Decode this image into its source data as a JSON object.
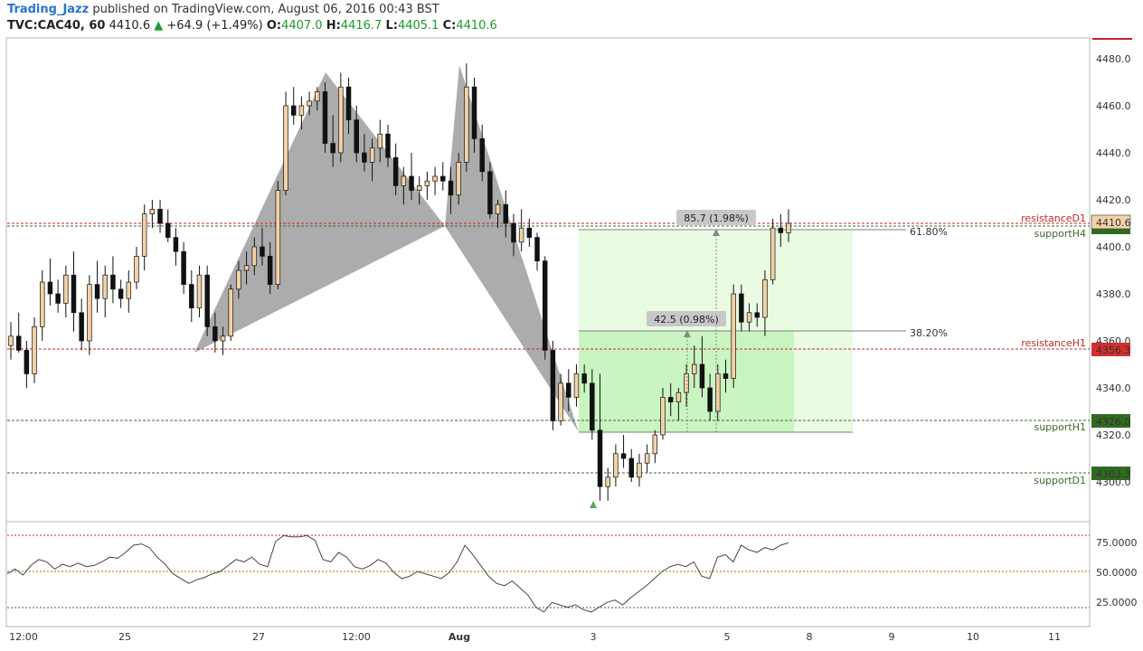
{
  "header": {
    "author": "Trading_Jazz",
    "published": "published on TradingView.com, August 06, 2016 00:43 BST",
    "symbol": "TVC:CAC40, 60",
    "last": "4410.6",
    "change_arrow": "▲",
    "change": "+64.9 (+1.49%)",
    "o_label": "O:",
    "o_value": "4407.0",
    "h_label": "H:",
    "h_value": "4416.7",
    "l_label": "L:",
    "l_value": "4405.1",
    "c_label": "C:",
    "c_value": "4410.6"
  },
  "colors": {
    "up_candle": "#f2d2a6",
    "down_candle": "#111111",
    "pattern_fill": "#9e9e9e",
    "projection_fill": "#e9fbe3",
    "projection_fill_inner": "#c6f3bd",
    "resistance_color": "#c62828",
    "support_color": "#3e6b2a",
    "rsi_line": "#444444"
  },
  "price_axis": {
    "ticks": [
      "4480.0",
      "4460.0",
      "4440.0",
      "4420.0",
      "4400.0",
      "4380.0",
      "4360.0",
      "4340.0",
      "4320.0",
      "4300.0"
    ],
    "last_price_tag": "4410.6"
  },
  "levels": [
    {
      "name": "resistanceD1",
      "tag": "",
      "type": "resistance"
    },
    {
      "name": "supportH4",
      "tag": "",
      "type": "support"
    },
    {
      "name": "resistanceH1",
      "tag": "4356.3",
      "type": "resistance"
    },
    {
      "name": "supportH1",
      "tag": "4326.0",
      "type": "support"
    },
    {
      "name": "supportD1",
      "tag": "4303.3",
      "type": "support"
    }
  ],
  "measure_labels": {
    "big": "85.7 (1.98%)",
    "small": "42.5 (0.98%)"
  },
  "fib_labels": {
    "upper": "61.80%",
    "lower": "38.20%"
  },
  "rsi_axis": {
    "ticks": [
      "75.0000",
      "50.0000",
      "25.0000"
    ]
  },
  "time_axis": {
    "labels": [
      "12:00",
      "25",
      "27",
      "12:00",
      "Aug",
      "3",
      "5",
      "8",
      "9",
      "10",
      "11"
    ]
  },
  "chart_data": {
    "type": "candlestick",
    "ohlc": [
      [
        4358,
        4368,
        4352,
        4362
      ],
      [
        4362,
        4372,
        4355,
        4356
      ],
      [
        4356,
        4360,
        4340,
        4346
      ],
      [
        4346,
        4370,
        4342,
        4366
      ],
      [
        4366,
        4390,
        4360,
        4385
      ],
      [
        4385,
        4395,
        4375,
        4380
      ],
      [
        4380,
        4386,
        4372,
        4376
      ],
      [
        4376,
        4392,
        4370,
        4388
      ],
      [
        4388,
        4398,
        4364,
        4372
      ],
      [
        4372,
        4378,
        4356,
        4360
      ],
      [
        4360,
        4388,
        4354,
        4384
      ],
      [
        4384,
        4394,
        4372,
        4378
      ],
      [
        4378,
        4392,
        4370,
        4388
      ],
      [
        4388,
        4396,
        4376,
        4382
      ],
      [
        4382,
        4386,
        4374,
        4378
      ],
      [
        4378,
        4390,
        4372,
        4385
      ],
      [
        4385,
        4400,
        4382,
        4396
      ],
      [
        4396,
        4418,
        4390,
        4414
      ],
      [
        4414,
        4420,
        4408,
        4416
      ],
      [
        4416,
        4420,
        4406,
        4410
      ],
      [
        4410,
        4416,
        4402,
        4404
      ],
      [
        4404,
        4408,
        4392,
        4398
      ],
      [
        4398,
        4402,
        4380,
        4384
      ],
      [
        4384,
        4390,
        4368,
        4374
      ],
      [
        4374,
        4392,
        4370,
        4388
      ],
      [
        4388,
        4392,
        4362,
        4366
      ],
      [
        4366,
        4372,
        4355,
        4360
      ],
      [
        4360,
        4366,
        4354,
        4362
      ],
      [
        4362,
        4384,
        4360,
        4382
      ],
      [
        4382,
        4394,
        4378,
        4390
      ],
      [
        4390,
        4398,
        4384,
        4392
      ],
      [
        4392,
        4404,
        4388,
        4400
      ],
      [
        4400,
        4408,
        4392,
        4396
      ],
      [
        4396,
        4402,
        4380,
        4384
      ],
      [
        4384,
        4428,
        4382,
        4424
      ],
      [
        4424,
        4466,
        4422,
        4460
      ],
      [
        4460,
        4468,
        4452,
        4456
      ],
      [
        4456,
        4464,
        4450,
        4460
      ],
      [
        4460,
        4466,
        4456,
        4462
      ],
      [
        4462,
        4468,
        4458,
        4466
      ],
      [
        4466,
        4470,
        4440,
        4444
      ],
      [
        4444,
        4456,
        4434,
        4440
      ],
      [
        4440,
        4474,
        4436,
        4468
      ],
      [
        4468,
        4472,
        4448,
        4454
      ],
      [
        4454,
        4460,
        4436,
        4440
      ],
      [
        4440,
        4448,
        4432,
        4436
      ],
      [
        4436,
        4446,
        4428,
        4442
      ],
      [
        4442,
        4454,
        4436,
        4448
      ],
      [
        4448,
        4452,
        4434,
        4438
      ],
      [
        4438,
        4444,
        4422,
        4426
      ],
      [
        4426,
        4434,
        4418,
        4430
      ],
      [
        4430,
        4440,
        4420,
        4424
      ],
      [
        4424,
        4430,
        4418,
        4426
      ],
      [
        4426,
        4432,
        4420,
        4428
      ],
      [
        4428,
        4434,
        4422,
        4430
      ],
      [
        4430,
        4436,
        4424,
        4428
      ],
      [
        4428,
        4434,
        4414,
        4422
      ],
      [
        4422,
        4440,
        4418,
        4436
      ],
      [
        4436,
        4478,
        4432,
        4468
      ],
      [
        4468,
        4472,
        4440,
        4446
      ],
      [
        4446,
        4452,
        4428,
        4432
      ],
      [
        4432,
        4436,
        4412,
        4414
      ],
      [
        4414,
        4420,
        4408,
        4418
      ],
      [
        4418,
        4424,
        4404,
        4410
      ],
      [
        4410,
        4414,
        4396,
        4402
      ],
      [
        4402,
        4416,
        4398,
        4408
      ],
      [
        4408,
        4412,
        4400,
        4404
      ],
      [
        4404,
        4406,
        4390,
        4394
      ],
      [
        4394,
        4396,
        4352,
        4356
      ],
      [
        4356,
        4360,
        4322,
        4326
      ],
      [
        4326,
        4346,
        4324,
        4342
      ],
      [
        4342,
        4348,
        4330,
        4336
      ],
      [
        4336,
        4350,
        4332,
        4346
      ],
      [
        4346,
        4350,
        4338,
        4342
      ],
      [
        4342,
        4348,
        4318,
        4322
      ],
      [
        4322,
        4346,
        4292,
        4298
      ],
      [
        4298,
        4306,
        4292,
        4302
      ],
      [
        4302,
        4316,
        4298,
        4312
      ],
      [
        4312,
        4320,
        4306,
        4310
      ],
      [
        4310,
        4314,
        4300,
        4302
      ],
      [
        4302,
        4312,
        4298,
        4308
      ],
      [
        4308,
        4316,
        4304,
        4312
      ],
      [
        4312,
        4322,
        4308,
        4320
      ],
      [
        4320,
        4340,
        4318,
        4336
      ],
      [
        4336,
        4342,
        4328,
        4334
      ],
      [
        4334,
        4340,
        4326,
        4338
      ],
      [
        4338,
        4350,
        4332,
        4346
      ],
      [
        4346,
        4358,
        4340,
        4350
      ],
      [
        4350,
        4362,
        4336,
        4340
      ],
      [
        4340,
        4346,
        4326,
        4330
      ],
      [
        4330,
        4350,
        4326,
        4346
      ],
      [
        4346,
        4352,
        4338,
        4344
      ],
      [
        4344,
        4384,
        4340,
        4380
      ],
      [
        4380,
        4384,
        4364,
        4368
      ],
      [
        4368,
        4376,
        4364,
        4372
      ],
      [
        4372,
        4376,
        4366,
        4370
      ],
      [
        4370,
        4390,
        4362,
        4386
      ],
      [
        4386,
        4412,
        4384,
        4408
      ],
      [
        4408,
        4414,
        4400,
        4406
      ],
      [
        4406,
        4416,
        4402,
        4410
      ]
    ],
    "rsi": [
      48,
      52,
      47,
      55,
      60,
      58,
      52,
      56,
      54,
      57,
      54,
      55,
      58,
      62,
      61,
      66,
      72,
      73,
      70,
      62,
      56,
      48,
      44,
      40,
      43,
      45,
      48,
      50,
      55,
      60,
      58,
      62,
      56,
      54,
      75,
      80,
      79,
      79,
      80,
      76,
      60,
      58,
      66,
      62,
      54,
      52,
      55,
      60,
      57,
      49,
      44,
      46,
      50,
      48,
      46,
      44,
      49,
      58,
      72,
      64,
      55,
      46,
      40,
      38,
      42,
      36,
      30,
      20,
      16,
      24,
      22,
      20,
      22,
      18,
      16,
      20,
      24,
      26,
      22,
      28,
      33,
      38,
      44,
      50,
      54,
      56,
      54,
      58,
      46,
      44,
      62,
      64,
      58,
      72,
      68,
      66,
      70,
      68,
      72,
      74
    ]
  }
}
